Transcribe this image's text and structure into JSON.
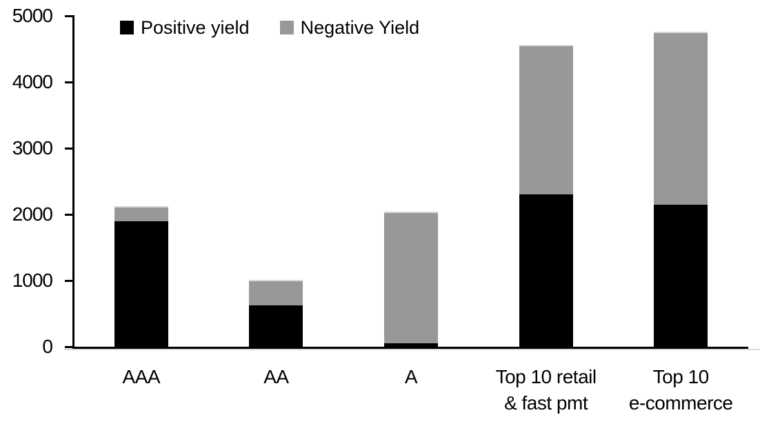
{
  "chart_data": {
    "type": "bar",
    "stacked": true,
    "title": "",
    "xlabel": "",
    "ylabel": "",
    "categories": [
      "AAA",
      "AA",
      "A",
      "Top 10 retail\n& fast pmt",
      "Top 10\ne-commerce"
    ],
    "series": [
      {
        "name": "Positive yield",
        "color": "#000000",
        "values": [
          1900,
          630,
          50,
          2300,
          2150
        ]
      },
      {
        "name": "Negative Yield",
        "color": "#989898",
        "values": [
          230,
          380,
          1990,
          2260,
          2610
        ]
      }
    ],
    "totals": [
      2130,
      1010,
      2040,
      4560,
      4760
    ],
    "ylim": [
      0,
      5000
    ],
    "yticks": [
      0,
      1000,
      2000,
      3000,
      4000,
      5000
    ],
    "grid": false,
    "legend_position": "top-left-inside"
  },
  "colors": {
    "positive": "#000000",
    "negative": "#989898",
    "axis": "#000000",
    "background": "#ffffff",
    "bar-top-edge": "#d9d9d9"
  }
}
